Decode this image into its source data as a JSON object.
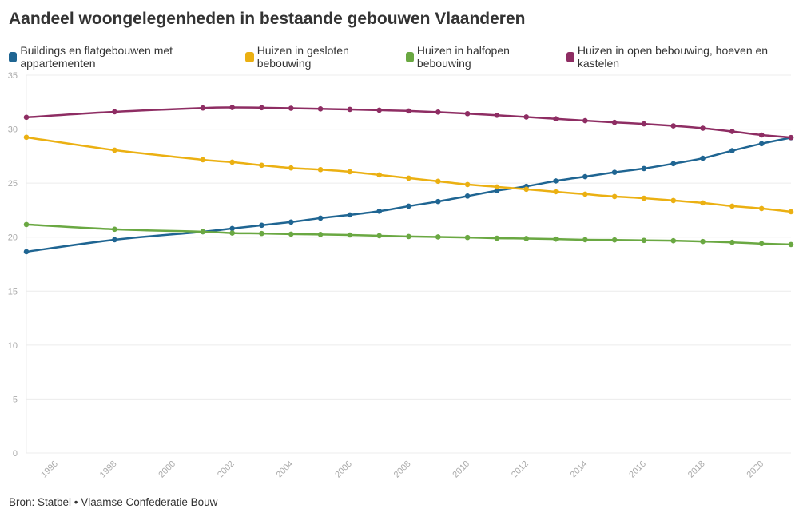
{
  "chart_data": {
    "type": "line",
    "title": "Aandeel woongelegenheden in bestaande gebouwen Vlaanderen",
    "source": "Bron: Statbel • Vlaamse Confederatie Bouw",
    "xlabel": "",
    "ylabel": "",
    "ylim": [
      0,
      35
    ],
    "xlim": [
      1995,
      2021
    ],
    "yticks": [
      0,
      5,
      10,
      15,
      20,
      25,
      30,
      35
    ],
    "xticks": [
      1996,
      1998,
      2000,
      2002,
      2004,
      2006,
      2008,
      2010,
      2012,
      2014,
      2016,
      2018,
      2020
    ],
    "grid": true,
    "legend_position": "top-left",
    "x": [
      1995,
      1998,
      2001,
      2002,
      2003,
      2004,
      2005,
      2006,
      2007,
      2008,
      2009,
      2010,
      2011,
      2012,
      2013,
      2014,
      2015,
      2016,
      2017,
      2018,
      2019,
      2020,
      2021
    ],
    "series": [
      {
        "name": "Buildings en flatgebouwen met appartementen",
        "color": "#1f6592",
        "values": [
          18.65,
          19.76,
          20.5,
          20.8,
          21.1,
          21.4,
          21.76,
          22.06,
          22.4,
          22.87,
          23.3,
          23.8,
          24.3,
          24.7,
          25.2,
          25.6,
          26.0,
          26.35,
          26.8,
          27.3,
          28.0,
          28.65,
          29.2
        ]
      },
      {
        "name": "Huizen in gesloten bebouwing",
        "color": "#ebb012",
        "values": [
          29.24,
          28.05,
          27.16,
          26.94,
          26.65,
          26.4,
          26.25,
          26.05,
          25.76,
          25.46,
          25.17,
          24.87,
          24.65,
          24.43,
          24.2,
          23.98,
          23.76,
          23.6,
          23.39,
          23.17,
          22.87,
          22.65,
          22.35
        ]
      },
      {
        "name": "Huizen in halfopen bebouwing",
        "color": "#6aa842",
        "values": [
          21.17,
          20.73,
          20.5,
          20.38,
          20.34,
          20.28,
          20.25,
          20.2,
          20.13,
          20.06,
          20.02,
          19.97,
          19.9,
          19.87,
          19.82,
          19.76,
          19.74,
          19.7,
          19.67,
          19.6,
          19.52,
          19.4,
          19.32
        ]
      },
      {
        "name": "Huizen in open bebouwing, hoeven en kastelen",
        "color": "#8e2d63",
        "values": [
          31.09,
          31.6,
          31.95,
          32.0,
          31.98,
          31.93,
          31.87,
          31.82,
          31.75,
          31.68,
          31.57,
          31.43,
          31.28,
          31.12,
          30.95,
          30.78,
          30.62,
          30.48,
          30.3,
          30.08,
          29.78,
          29.45,
          29.22
        ]
      }
    ]
  }
}
